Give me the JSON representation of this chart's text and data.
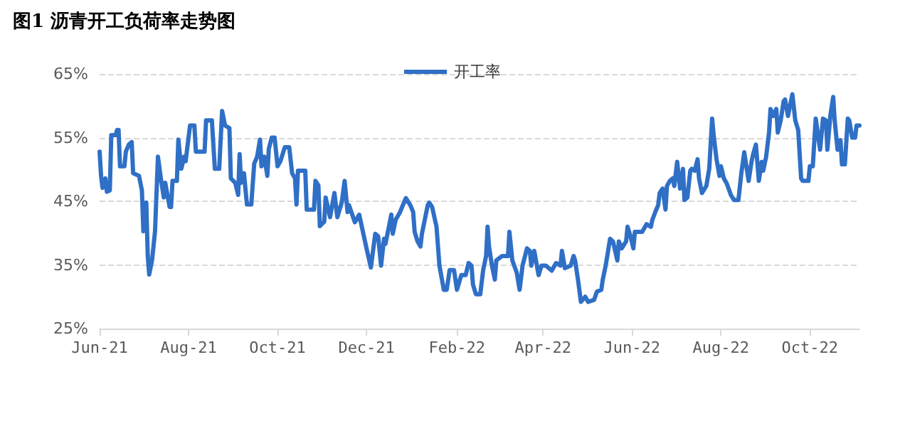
{
  "chart_data": {
    "type": "line",
    "title": "图1 沥青开工负荷率走势图",
    "x": [
      "2021-06-01",
      "2021-06-02",
      "2021-06-03",
      "2021-06-05",
      "2021-06-06",
      "2021-06-08",
      "2021-06-09",
      "2021-06-12",
      "2021-06-13",
      "2021-06-14",
      "2021-06-15",
      "2021-06-18",
      "2021-06-19",
      "2021-06-21",
      "2021-06-23",
      "2021-06-24",
      "2021-06-28",
      "2021-06-30",
      "2021-07-01",
      "2021-07-03",
      "2021-07-04",
      "2021-07-05",
      "2021-07-07",
      "2021-07-09",
      "2021-07-11",
      "2021-07-13",
      "2021-07-15",
      "2021-07-16",
      "2021-07-19",
      "2021-07-20",
      "2021-07-21",
      "2021-07-24",
      "2021-07-25",
      "2021-07-27",
      "2021-07-29",
      "2021-07-30",
      "2021-08-02",
      "2021-08-05",
      "2021-08-06",
      "2021-08-12",
      "2021-08-13",
      "2021-08-17",
      "2021-08-19",
      "2021-08-22",
      "2021-08-24",
      "2021-08-26",
      "2021-08-29",
      "2021-08-30",
      "2021-09-02",
      "2021-09-04",
      "2021-09-05",
      "2021-09-06",
      "2021-09-08",
      "2021-09-10",
      "2021-09-13",
      "2021-09-15",
      "2021-09-17",
      "2021-09-19",
      "2021-09-20",
      "2021-09-22",
      "2021-09-24",
      "2021-09-25",
      "2021-09-27",
      "2021-09-29",
      "2021-10-01",
      "2021-10-03",
      "2021-10-06",
      "2021-10-09",
      "2021-10-11",
      "2021-10-13",
      "2021-10-14",
      "2021-10-15",
      "2021-10-20",
      "2021-10-21",
      "2021-10-26",
      "2021-10-27",
      "2021-10-29",
      "2021-10-30",
      "2021-11-02",
      "2021-11-03",
      "2021-11-06",
      "2021-11-09",
      "2021-11-11",
      "2021-11-14",
      "2021-11-16",
      "2021-11-18",
      "2021-11-19",
      "2021-11-23",
      "2021-11-26",
      "2021-12-01",
      "2021-12-04",
      "2021-12-07",
      "2021-12-09",
      "2021-12-11",
      "2021-12-13",
      "2021-12-14",
      "2021-12-18",
      "2021-12-19",
      "2021-12-21",
      "2021-12-24",
      "2021-12-28",
      "2021-12-31",
      "2022-01-02",
      "2022-01-03",
      "2022-01-05",
      "2022-01-07",
      "2022-01-08",
      "2022-01-12",
      "2022-01-13",
      "2022-01-15",
      "2022-01-18",
      "2022-01-20",
      "2022-01-23",
      "2022-01-25",
      "2022-01-27",
      "2022-01-30",
      "2022-02-01",
      "2022-02-04",
      "2022-02-07",
      "2022-02-09",
      "2022-02-11",
      "2022-02-12",
      "2022-02-14",
      "2022-02-17",
      "2022-02-19",
      "2022-02-21",
      "2022-02-22",
      "2022-02-23",
      "2022-02-25",
      "2022-02-27",
      "2022-02-28",
      "2022-03-04",
      "2022-03-08",
      "2022-03-09",
      "2022-03-11",
      "2022-03-14",
      "2022-03-16",
      "2022-03-18",
      "2022-03-21",
      "2022-03-23",
      "2022-03-24",
      "2022-03-26",
      "2022-03-29",
      "2022-03-31",
      "2022-04-03",
      "2022-04-07",
      "2022-04-10",
      "2022-04-13",
      "2022-04-14",
      "2022-04-16",
      "2022-04-20",
      "2022-04-22",
      "2022-04-23",
      "2022-04-25",
      "2022-04-27",
      "2022-04-30",
      "2022-05-02",
      "2022-05-06",
      "2022-05-08",
      "2022-05-11",
      "2022-05-12",
      "2022-05-14",
      "2022-05-17",
      "2022-05-19",
      "2022-05-22",
      "2022-05-23",
      "2022-05-25",
      "2022-05-28",
      "2022-05-29",
      "2022-05-31",
      "2022-06-02",
      "2022-06-03",
      "2022-06-08",
      "2022-06-11",
      "2022-06-14",
      "2022-06-15",
      "2022-06-17",
      "2022-06-19",
      "2022-06-20",
      "2022-06-22",
      "2022-06-24",
      "2022-06-25",
      "2022-06-27",
      "2022-06-29",
      "2022-06-30",
      "2022-07-02",
      "2022-07-04",
      "2022-07-06",
      "2022-07-07",
      "2022-07-09",
      "2022-07-11",
      "2022-07-12",
      "2022-07-14",
      "2022-07-16",
      "2022-07-17",
      "2022-07-19",
      "2022-07-22",
      "2022-07-24",
      "2022-07-26",
      "2022-07-27",
      "2022-07-29",
      "2022-07-31",
      "2022-08-01",
      "2022-08-03",
      "2022-08-05",
      "2022-08-08",
      "2022-08-10",
      "2022-08-13",
      "2022-08-15",
      "2022-08-17",
      "2022-08-20",
      "2022-08-22",
      "2022-08-23",
      "2022-08-25",
      "2022-08-27",
      "2022-08-29",
      "2022-08-30",
      "2022-09-01",
      "2022-09-03",
      "2022-09-04",
      "2022-09-06",
      "2022-09-08",
      "2022-09-09",
      "2022-09-11",
      "2022-09-13",
      "2022-09-14",
      "2022-09-16",
      "2022-09-18",
      "2022-09-19",
      "2022-09-21",
      "2022-09-23",
      "2022-09-25",
      "2022-09-26",
      "2022-09-30",
      "2022-10-01",
      "2022-10-03",
      "2022-10-05",
      "2022-10-08",
      "2022-10-10",
      "2022-10-12",
      "2022-10-13",
      "2022-10-15",
      "2022-10-17",
      "2022-10-18",
      "2022-10-20",
      "2022-10-22",
      "2022-10-23",
      "2022-10-25",
      "2022-10-27",
      "2022-10-28",
      "2022-10-30",
      "2022-11-01",
      "2022-11-02",
      "2022-11-04"
    ],
    "series": [
      {
        "name": "开工率",
        "color": "#2f6fc6",
        "values": [
          52.8,
          49,
          47.1,
          48.6,
          46.5,
          46.7,
          55.4,
          55.4,
          56.2,
          56.2,
          50.5,
          50.5,
          52.8,
          53.9,
          54.3,
          49.4,
          49,
          46.7,
          40.3,
          44.8,
          36.5,
          33.5,
          35.8,
          40.3,
          52,
          48.6,
          45.6,
          47.9,
          44.1,
          44.1,
          48.2,
          48.2,
          54.7,
          50.1,
          52,
          51.3,
          56.9,
          56.9,
          52.8,
          52.8,
          57.7,
          57.7,
          50.1,
          50.1,
          59.2,
          56.9,
          56.5,
          48.6,
          47.9,
          46,
          52.4,
          47.9,
          49.4,
          44.5,
          44.5,
          50.9,
          52,
          54.7,
          50.5,
          52,
          49,
          53.2,
          55,
          55,
          50.5,
          51.3,
          53.5,
          53.5,
          49.4,
          48.6,
          44.5,
          49.8,
          49.8,
          43.7,
          43.7,
          48.2,
          47.5,
          41.1,
          41.8,
          45.6,
          42.5,
          46.3,
          42.5,
          44.8,
          48.2,
          43.3,
          44.4,
          41.7,
          42.9,
          37.6,
          34.6,
          39.9,
          39.5,
          34.9,
          39.1,
          38.3,
          42.9,
          39.9,
          42.1,
          43.3,
          45.5,
          44.4,
          43.3,
          40.2,
          38.7,
          37.9,
          39.9,
          44.4,
          44.8,
          44.1,
          41,
          34.9,
          31.1,
          31.1,
          34.2,
          34.2,
          31.1,
          33.4,
          33.4,
          35.3,
          34.9,
          31.9,
          30.4,
          30.4,
          34.2,
          36.4,
          41,
          37.9,
          34.9,
          32.7,
          35.7,
          36.4,
          36.4,
          40.2,
          35.7,
          33.8,
          31.1,
          34.9,
          37.6,
          37.2,
          34.9,
          37.2,
          33.4,
          34.9,
          34.9,
          34.1,
          35.3,
          34.9,
          37.2,
          34.5,
          34.9,
          36.4,
          35.7,
          32.7,
          29.2,
          30,
          29.2,
          29.5,
          30.8,
          31.1,
          32.7,
          34.9,
          39.1,
          38.7,
          35.7,
          38.7,
          37.6,
          38.7,
          41,
          39.5,
          37.6,
          40.2,
          40.2,
          41.4,
          41,
          42.1,
          43.3,
          44.4,
          46.3,
          47,
          43.7,
          47.4,
          48.2,
          48.6,
          47.4,
          51.2,
          47,
          50.1,
          45.2,
          45.6,
          49.8,
          50.1,
          49.8,
          51.6,
          48.6,
          46.3,
          47.4,
          50.1,
          58,
          55.4,
          51.6,
          49,
          50.5,
          48.6,
          47.8,
          45.9,
          45.2,
          45.2,
          49.4,
          52.7,
          48.2,
          51.2,
          52.3,
          53.9,
          48.2,
          51.2,
          49.8,
          52,
          55.8,
          59.5,
          58.4,
          59.5,
          55.8,
          57.7,
          60.7,
          61,
          58.4,
          60.7,
          61.8,
          57.7,
          56.2,
          48.6,
          48.2,
          48.2,
          50.5,
          50.5,
          58,
          53.1,
          58,
          57.7,
          53.1,
          58.4,
          61.4,
          57.7,
          53.1,
          54.6,
          50.8,
          50.8,
          58,
          57.7,
          55,
          55,
          56.9,
          56.9
        ]
      }
    ],
    "xlim": [
      "2021-06-01",
      "2022-11-04"
    ],
    "xticks": [
      {
        "value": "2021-06-01",
        "label": "Jun-21"
      },
      {
        "value": "2021-08-01",
        "label": "Aug-21"
      },
      {
        "value": "2021-10-01",
        "label": "Oct-21"
      },
      {
        "value": "2021-12-01",
        "label": "Dec-21"
      },
      {
        "value": "2022-02-01",
        "label": "Feb-22"
      },
      {
        "value": "2022-04-01",
        "label": "Apr-22"
      },
      {
        "value": "2022-06-01",
        "label": "Jun-22"
      },
      {
        "value": "2022-08-01",
        "label": "Aug-22"
      },
      {
        "value": "2022-10-01",
        "label": "Oct-22"
      }
    ],
    "ylim": [
      25,
      65
    ],
    "yticks": [
      {
        "value": 25,
        "label": "25%"
      },
      {
        "value": 35,
        "label": "35%"
      },
      {
        "value": 45,
        "label": "45%"
      },
      {
        "value": 55,
        "label": "55%"
      },
      {
        "value": 65,
        "label": "65%"
      }
    ],
    "grid": "y",
    "legend": "top",
    "marker": "none",
    "line_style": "solid"
  }
}
